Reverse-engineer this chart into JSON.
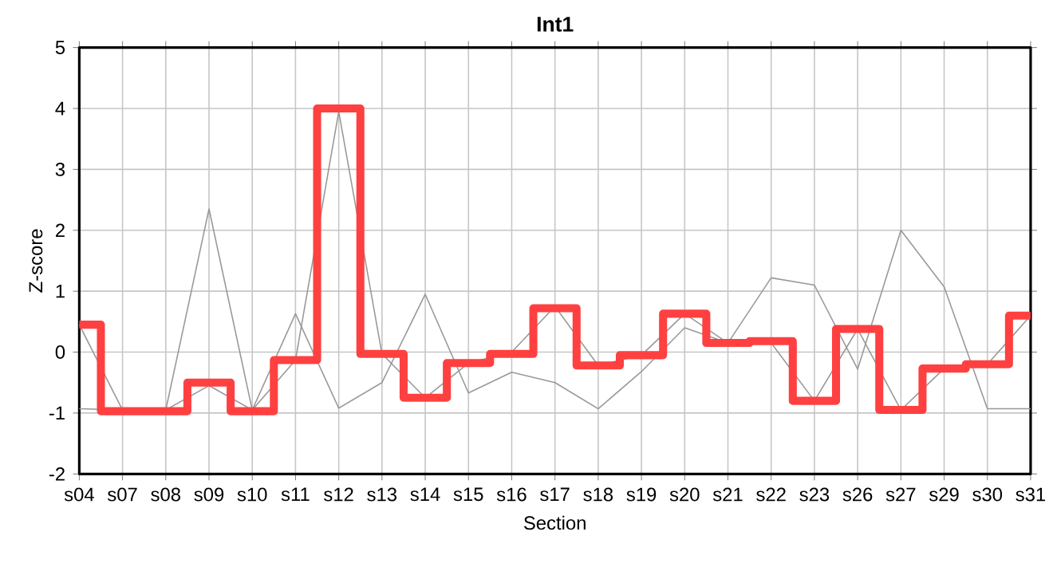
{
  "chart_data": {
    "type": "line",
    "title": "Int1",
    "xlabel": "Section",
    "ylabel": "Z-score",
    "categories": [
      "s04",
      "s07",
      "s08",
      "s09",
      "s10",
      "s11",
      "s12",
      "s13",
      "s14",
      "s15",
      "s16",
      "s17",
      "s18",
      "s19",
      "s20",
      "s21",
      "s22",
      "s23",
      "s26",
      "s27",
      "s29",
      "s30",
      "s31"
    ],
    "ylim": [
      -2,
      5
    ],
    "yticks": [
      -2,
      -1,
      0,
      1,
      2,
      3,
      4,
      5
    ],
    "grid": true,
    "marker": "none",
    "series": [
      {
        "type": "line",
        "color": "#999999",
        "values": [
          -0.93,
          -0.95,
          -0.95,
          2.35,
          -0.95,
          0.63,
          -0.92,
          -0.5,
          0.95,
          -0.67,
          -0.33,
          -0.5,
          -0.93,
          -0.32,
          0.4,
          0.15,
          1.22,
          1.1,
          -0.28,
          2.0,
          1.07,
          -0.93,
          -0.93
        ]
      },
      {
        "type": "line",
        "color": "#999999",
        "values": [
          0.45,
          -0.95,
          -0.95,
          -0.55,
          -0.95,
          -0.13,
          3.95,
          -0.03,
          -0.75,
          -0.18,
          0.0,
          0.75,
          -0.22,
          -0.05,
          0.63,
          0.15,
          0.15,
          -0.8,
          0.38,
          -0.95,
          -0.27,
          -0.2,
          0.6
        ]
      },
      {
        "type": "step",
        "color": "#ff4040",
        "values": [
          0.45,
          -0.97,
          -0.97,
          -0.5,
          -0.97,
          -0.13,
          4.0,
          -0.03,
          -0.75,
          -0.18,
          -0.03,
          0.72,
          -0.22,
          -0.05,
          0.63,
          0.15,
          0.18,
          -0.8,
          0.38,
          -0.95,
          -0.27,
          -0.2,
          0.6
        ]
      }
    ]
  }
}
